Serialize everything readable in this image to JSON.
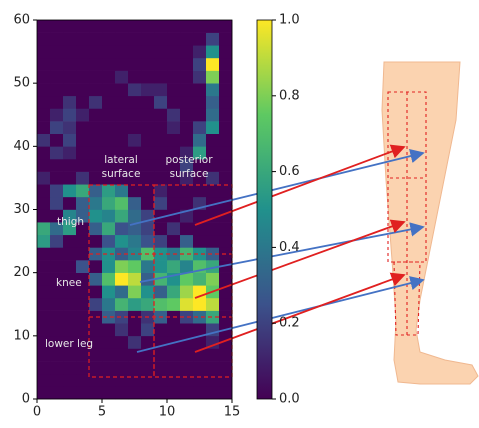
{
  "chart_data": {
    "type": "heatmap",
    "colormap": "viridis",
    "xlim": [
      0,
      15
    ],
    "ylim": [
      0,
      60
    ],
    "xticks": [
      0,
      5,
      10,
      15
    ],
    "yticks": [
      0,
      10,
      20,
      30,
      40,
      50,
      60
    ],
    "clim": [
      0,
      1
    ],
    "cticks": [
      {
        "value": 0,
        "label": "0.0"
      },
      {
        "value": 0.2,
        "label": "0.2"
      },
      {
        "value": 0.4,
        "label": "0.4"
      },
      {
        "value": 0.6,
        "label": "0.6"
      },
      {
        "value": 0.8,
        "label": "0.8"
      },
      {
        "value": 1,
        "label": "1.0"
      }
    ],
    "annotations": [
      "lateral",
      "surface",
      "posterior",
      "surface",
      "thigh",
      "knee",
      "lower leg"
    ],
    "z": [
      [
        0,
        0,
        0,
        0,
        0,
        0,
        0,
        0,
        0,
        0,
        0,
        0,
        0,
        0,
        0
      ],
      [
        0,
        0,
        0,
        0,
        0,
        0,
        0,
        0,
        0,
        0,
        0,
        0,
        0,
        0,
        0
      ],
      [
        0,
        0,
        0,
        0,
        0,
        0,
        0,
        0,
        0,
        0,
        0,
        0,
        0,
        0,
        0
      ],
      [
        0,
        0,
        0,
        0,
        0,
        0,
        0,
        0,
        0,
        0,
        0,
        0,
        0,
        0,
        0
      ],
      [
        0,
        0,
        0,
        0,
        0,
        0,
        0,
        0.15,
        0,
        0,
        0,
        0,
        0,
        0.1,
        0
      ],
      [
        0,
        0,
        0,
        0,
        0,
        0,
        0.15,
        0,
        0.2,
        0,
        0,
        0,
        0,
        0.2,
        0
      ],
      [
        0,
        0,
        0,
        0,
        0,
        0.3,
        0.2,
        0,
        0.15,
        0.3,
        0,
        0.2,
        0.35,
        0.6,
        0
      ],
      [
        0,
        0,
        0,
        0,
        0.2,
        0.4,
        0.65,
        0.55,
        0.6,
        0.7,
        0.75,
        0.95,
        1.0,
        0.9,
        0
      ],
      [
        0,
        0,
        0,
        0,
        0,
        0.5,
        0.35,
        0.8,
        0.5,
        0.3,
        0.6,
        0.85,
        1.0,
        0.75,
        0
      ],
      [
        0,
        0,
        0,
        0,
        0.3,
        0.7,
        1.0,
        0.9,
        0.3,
        0.65,
        0.5,
        0.75,
        0.65,
        0.8,
        0
      ],
      [
        0,
        0,
        0,
        0.25,
        0,
        0.5,
        0.8,
        0.75,
        0.4,
        0.5,
        0.6,
        0.45,
        0.7,
        0.6,
        0
      ],
      [
        0,
        0,
        0,
        0,
        0.3,
        0.5,
        0.3,
        0.45,
        0.7,
        0.5,
        0.4,
        0.65,
        0.5,
        0.3,
        0
      ],
      [
        0.55,
        0.2,
        0,
        0,
        0,
        0.25,
        0.5,
        0.4,
        0.25,
        0.2,
        0,
        0.3,
        0,
        0,
        0
      ],
      [
        0.6,
        0.35,
        0.55,
        0,
        0.3,
        0.6,
        0.25,
        0.3,
        0.2,
        0,
        0.15,
        0,
        0,
        0,
        0
      ],
      [
        0,
        0,
        0.45,
        0.3,
        0.5,
        0.45,
        0.6,
        0.35,
        0.2,
        0,
        0,
        0.1,
        0,
        0,
        0
      ],
      [
        0,
        0.2,
        0,
        0.3,
        0.4,
        0.6,
        0.7,
        0.3,
        0,
        0.2,
        0,
        0,
        0.15,
        0,
        0
      ],
      [
        0,
        0.2,
        0.5,
        0.6,
        0.3,
        0.55,
        0.4,
        0,
        0,
        0.1,
        0,
        0,
        0,
        0,
        0
      ],
      [
        0.1,
        0,
        0,
        0.15,
        0,
        0,
        0,
        0,
        0,
        0,
        0,
        0.1,
        0,
        0.15,
        0
      ],
      [
        0,
        0,
        0,
        0,
        0,
        0,
        0,
        0,
        0,
        0,
        0,
        0.2,
        0,
        0,
        0
      ],
      [
        0,
        0.15,
        0.1,
        0,
        0,
        0,
        0,
        0,
        0,
        0,
        0,
        0.1,
        0.55,
        0,
        0
      ],
      [
        0.15,
        0,
        0.2,
        0,
        0,
        0,
        0,
        0.1,
        0,
        0,
        0,
        0,
        0.35,
        0,
        0
      ],
      [
        0,
        0.2,
        0.15,
        0,
        0,
        0,
        0,
        0,
        0,
        0,
        0.1,
        0,
        0.2,
        0.5,
        0
      ],
      [
        0,
        0.1,
        0.2,
        0.1,
        0,
        0,
        0,
        0,
        0,
        0,
        0.15,
        0,
        0,
        0.35,
        0
      ],
      [
        0,
        0,
        0.15,
        0,
        0.15,
        0,
        0,
        0,
        0,
        0.2,
        0,
        0,
        0,
        0.3,
        0
      ],
      [
        0,
        0,
        0,
        0,
        0,
        0,
        0,
        0.15,
        0.1,
        0.1,
        0,
        0,
        0,
        0.4,
        0
      ],
      [
        0,
        0,
        0,
        0,
        0,
        0,
        0.1,
        0,
        0,
        0,
        0,
        0,
        0.15,
        0.8,
        0
      ],
      [
        0,
        0,
        0,
        0,
        0,
        0,
        0,
        0,
        0,
        0,
        0,
        0,
        0.2,
        1.0,
        0
      ],
      [
        0,
        0,
        0,
        0,
        0,
        0,
        0,
        0,
        0,
        0,
        0,
        0,
        0.1,
        0.5,
        0
      ],
      [
        0,
        0,
        0,
        0,
        0,
        0,
        0,
        0,
        0,
        0,
        0,
        0,
        0,
        0.2,
        0
      ],
      [
        0,
        0,
        0,
        0,
        0,
        0,
        0,
        0,
        0,
        0,
        0,
        0,
        0,
        0,
        0
      ]
    ]
  }
}
